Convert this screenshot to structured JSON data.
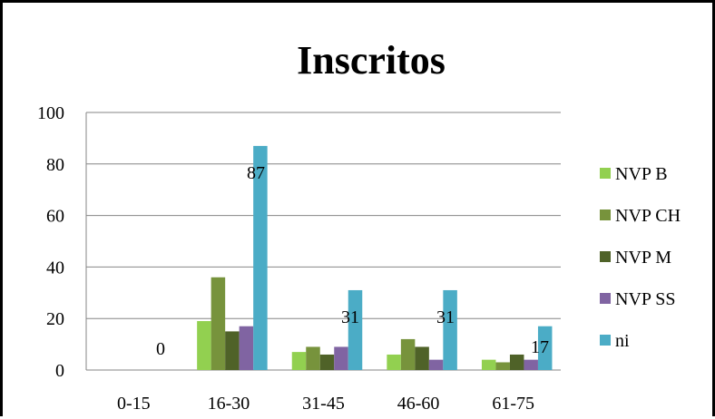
{
  "chart_data": {
    "type": "bar",
    "title": "Inscritos",
    "categories": [
      "0-15",
      "16-30",
      "31-45",
      "46-60",
      "61-75"
    ],
    "ylim": [
      0,
      100
    ],
    "yticks": [
      0,
      20,
      40,
      60,
      80,
      100
    ],
    "grid": true,
    "legend_position": "right",
    "series": [
      {
        "name": "NVP B",
        "color": "#92d050",
        "values": [
          0,
          19,
          7,
          6,
          4
        ]
      },
      {
        "name": "NVP CH",
        "color": "#77933c",
        "values": [
          0,
          36,
          9,
          12,
          3
        ]
      },
      {
        "name": "NVP M",
        "color": "#4f6228",
        "values": [
          0,
          15,
          6,
          9,
          6
        ]
      },
      {
        "name": "NVP SS",
        "color": "#8064a2",
        "values": [
          0,
          17,
          9,
          4,
          4
        ]
      },
      {
        "name": "ni",
        "color": "#4bacc6",
        "values": [
          0,
          87,
          31,
          31,
          17
        ]
      }
    ],
    "data_labels": {
      "series": "ni",
      "values": [
        "0",
        "87",
        "31",
        "31",
        "17"
      ]
    }
  }
}
